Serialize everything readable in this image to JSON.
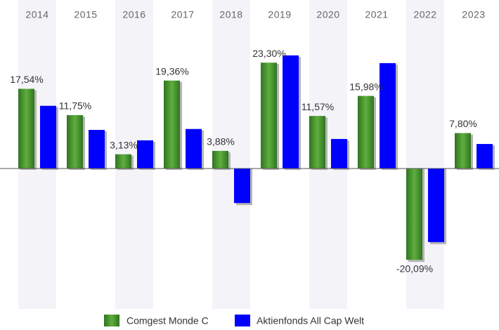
{
  "chart_data": {
    "type": "bar",
    "categories": [
      "2014",
      "2015",
      "2016",
      "2017",
      "2018",
      "2019",
      "2020",
      "2021",
      "2022",
      "2023"
    ],
    "series": [
      {
        "name": "Comgest Monde C",
        "color": "#3d8b2a",
        "values": [
          17.54,
          11.75,
          3.13,
          19.36,
          3.88,
          23.3,
          11.57,
          15.98,
          -20.09,
          7.8
        ],
        "value_labels": [
          "17,54%",
          "11,75%",
          "3,13%",
          "19,36%",
          "3,88%",
          "23,30%",
          "11,57%",
          "15,98%",
          "-20,09%",
          "7,80%"
        ]
      },
      {
        "name": "Aktienfonds All Cap  Welt",
        "color": "#0000ff",
        "values": [
          13.8,
          8.5,
          6.2,
          8.7,
          -7.6,
          24.9,
          6.5,
          23.2,
          -16.2,
          5.4
        ]
      }
    ]
  }
}
